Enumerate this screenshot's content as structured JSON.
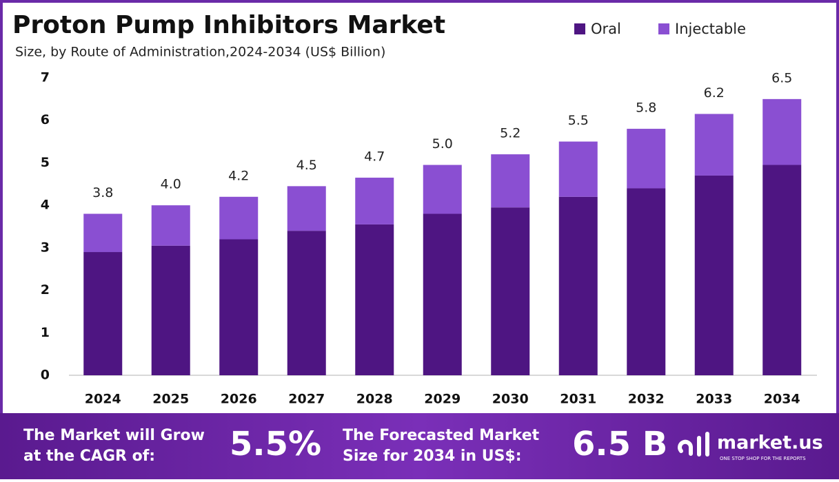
{
  "chart_data": {
    "type": "stacked_bar",
    "title": "Proton Pump Inhibitors Market",
    "subtitle": "Size, by Route of Administration,2024-2034 (US$ Billion)",
    "categories": [
      "2024",
      "2025",
      "2026",
      "2027",
      "2028",
      "2029",
      "2030",
      "2031",
      "2032",
      "2033",
      "2034"
    ],
    "series": [
      {
        "name": "Oral",
        "color": "#4e1582",
        "values": [
          2.9,
          3.05,
          3.2,
          3.4,
          3.55,
          3.8,
          3.95,
          4.2,
          4.4,
          4.7,
          4.95
        ]
      },
      {
        "name": "Injectable",
        "color": "#8a4fd2",
        "values": [
          0.9,
          0.95,
          1.0,
          1.05,
          1.1,
          1.15,
          1.25,
          1.3,
          1.4,
          1.45,
          1.55
        ]
      }
    ],
    "total_labels": [
      "3.8",
      "4.0",
      "4.2",
      "4.5",
      "4.7",
      "5.0",
      "5.2",
      "5.5",
      "5.8",
      "6.2",
      "6.5"
    ],
    "ylim": [
      0,
      7
    ],
    "yticks": [
      0,
      1,
      2,
      3,
      4,
      5,
      6,
      7
    ],
    "grid": false,
    "legend": "top-right"
  },
  "footer": {
    "cagr_text": [
      "The Market will Grow",
      "at the CAGR of:"
    ],
    "cagr_value": "5.5%",
    "forecast_text": [
      "The Forecasted Market",
      "Size for 2034 in US$:"
    ],
    "forecast_value": "6.5 B",
    "brand": "market.us",
    "tagline": "ONE STOP SHOP FOR THE REPORTS"
  }
}
